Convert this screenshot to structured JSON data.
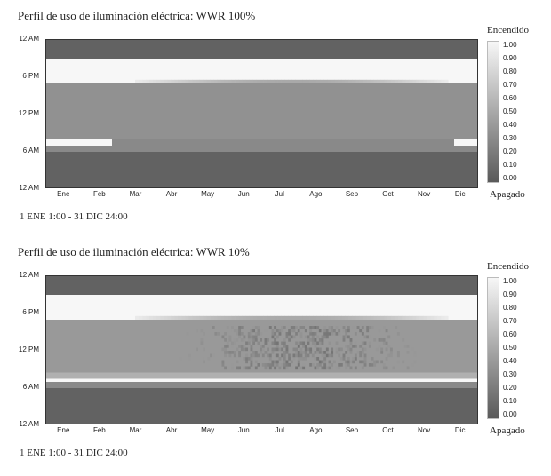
{
  "colors": {
    "on": "#f7f7f7",
    "off": "#6e6e6e",
    "night": "#5a5a5a",
    "border": "#333333"
  },
  "chart_data": [
    {
      "type": "heatmap",
      "title": "Perfil de uso de iluminación eléctrica: WWR 100%",
      "range_label": "1 ENE 1:00 - 31 DIC 24:00",
      "x_ticks": [
        "Ene",
        "Feb",
        "Mar",
        "Abr",
        "May",
        "Jun",
        "Jul",
        "Ago",
        "Sep",
        "Oct",
        "Nov",
        "Dic"
      ],
      "y_ticks": [
        "12 AM",
        "6 PM",
        "12 PM",
        "6 AM",
        "12 AM"
      ],
      "legend": {
        "top": "Encendido",
        "bottom": "Apagado",
        "ticks": [
          "1.00",
          "0.90",
          "0.80",
          "0.70",
          "0.60",
          "0.50",
          "0.40",
          "0.30",
          "0.20",
          "0.10",
          "0.00"
        ]
      },
      "bands": [
        {
          "from_hour": 0,
          "to_hour": 6,
          "value": 0.05
        },
        {
          "from_hour": 6,
          "to_hour": 7,
          "value": 0.3
        },
        {
          "from_hour": 7,
          "to_hour": 8,
          "value": 0.3,
          "winter_on": true
        },
        {
          "from_hour": 8,
          "to_hour": 17,
          "value": 0.35
        },
        {
          "from_hour": 17,
          "to_hour": 21,
          "value": 1.0,
          "summer_partial": true
        },
        {
          "from_hour": 21,
          "to_hour": 24,
          "value": 0.05
        }
      ],
      "mid_day_variation": false
    },
    {
      "type": "heatmap",
      "title": "Perfil de uso de iluminación eléctrica: WWR 10%",
      "range_label": "1 ENE 1:00 - 31 DIC 24:00",
      "x_ticks": [
        "Ene",
        "Feb",
        "Mar",
        "Abr",
        "May",
        "Jun",
        "Jul",
        "Ago",
        "Sep",
        "Oct",
        "Nov",
        "Dic"
      ],
      "y_ticks": [
        "12 AM",
        "6 PM",
        "12 PM",
        "6 AM",
        "12 AM"
      ],
      "legend": {
        "top": "Encendido",
        "bottom": "Apagado",
        "ticks": [
          "1.00",
          "0.90",
          "0.80",
          "0.70",
          "0.60",
          "0.50",
          "0.40",
          "0.30",
          "0.20",
          "0.10",
          "0.00"
        ]
      },
      "bands": [
        {
          "from_hour": 0,
          "to_hour": 6,
          "value": 0.05
        },
        {
          "from_hour": 6,
          "to_hour": 7,
          "value": 0.3
        },
        {
          "from_hour": 7,
          "to_hour": 7.5,
          "value": 1.0,
          "full_year": true
        },
        {
          "from_hour": 7.5,
          "to_hour": 8.5,
          "value": 0.55
        },
        {
          "from_hour": 8.5,
          "to_hour": 17,
          "value": 0.4
        },
        {
          "from_hour": 17,
          "to_hour": 21,
          "value": 1.0,
          "summer_partial": true
        },
        {
          "from_hour": 21,
          "to_hour": 24,
          "value": 0.05
        }
      ],
      "mid_day_variation": true
    }
  ]
}
